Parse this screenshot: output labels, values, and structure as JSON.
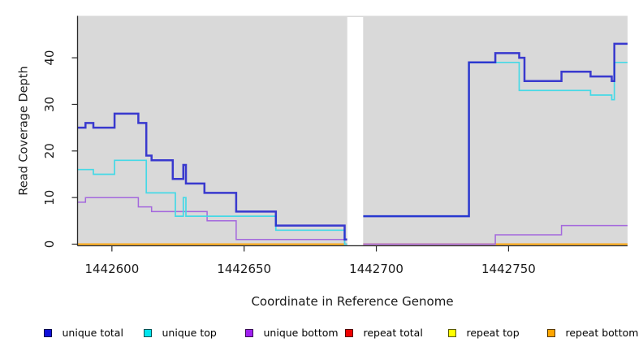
{
  "chart_data": {
    "type": "line",
    "subtype": "step-after",
    "title": "",
    "xlabel": "Coordinate in Reference Genome",
    "ylabel": "Read Coverage Depth",
    "xlim": [
      1442587,
      1442795
    ],
    "ylim": [
      0,
      49
    ],
    "x_ticks": [
      1442600,
      1442650,
      1442700,
      1442750
    ],
    "y_ticks": [
      0,
      10,
      20,
      30,
      40
    ],
    "grid": false,
    "legend_position": "bottom",
    "plot_bg": "#d9d9d9",
    "page_bg": "#ffffff",
    "axis_color": "#2b2b2b",
    "gap_region": {
      "x0": 1442689,
      "x1": 1442695,
      "fill": "#ffffff"
    },
    "zero_overlap_segment": {
      "x0": 1442695,
      "x1": 1442745,
      "value": 0,
      "color": "#d4607a",
      "width": 1.7,
      "z": 3.5
    },
    "series": [
      {
        "name": "unique total",
        "color": "#2121cc",
        "legend_color": "#0f0fd9",
        "width": 2.5,
        "opacity": 0.87,
        "z": 6,
        "segments": [
          [
            [
              1442587,
              25
            ],
            [
              1442590,
              26
            ],
            [
              1442593,
              25
            ],
            [
              1442601,
              28
            ],
            [
              1442610,
              26
            ],
            [
              1442613,
              19
            ],
            [
              1442615,
              18
            ],
            [
              1442623,
              14
            ],
            [
              1442627,
              17
            ],
            [
              1442628,
              13
            ],
            [
              1442635,
              11
            ],
            [
              1442647,
              7
            ],
            [
              1442662,
              4
            ],
            [
              1442688,
              1
            ],
            [
              1442689,
              1
            ]
          ],
          [
            [
              1442695,
              6
            ],
            [
              1442735,
              39
            ],
            [
              1442745,
              41
            ],
            [
              1442754,
              40
            ],
            [
              1442756,
              35
            ],
            [
              1442770,
              37
            ],
            [
              1442781,
              36
            ],
            [
              1442789,
              35
            ],
            [
              1442790,
              43
            ],
            [
              1442795,
              43
            ]
          ]
        ]
      },
      {
        "name": "unique top",
        "color": "#45d9e6",
        "legend_color": "#00e5ee",
        "width": 1.7,
        "opacity": 1,
        "z": 5,
        "segments": [
          [
            [
              1442587,
              16
            ],
            [
              1442593,
              15
            ],
            [
              1442601,
              18
            ],
            [
              1442613,
              11
            ],
            [
              1442624,
              6
            ],
            [
              1442627,
              10
            ],
            [
              1442628,
              6
            ],
            [
              1442662,
              3
            ],
            [
              1442688,
              0
            ],
            [
              1442689,
              0
            ]
          ],
          [
            [
              1442695,
              6
            ],
            [
              1442735,
              39
            ],
            [
              1442754,
              33
            ],
            [
              1442781,
              32
            ],
            [
              1442789,
              31
            ],
            [
              1442790,
              39
            ],
            [
              1442795,
              39
            ]
          ]
        ]
      },
      {
        "name": "unique bottom",
        "color": "#a468dd",
        "legend_color": "#a020f0",
        "width": 1.5,
        "opacity": 1,
        "z": 4,
        "segments": [
          [
            [
              1442587,
              9
            ],
            [
              1442590,
              10
            ],
            [
              1442610,
              8
            ],
            [
              1442615,
              7
            ],
            [
              1442636,
              5
            ],
            [
              1442647,
              1
            ],
            [
              1442688,
              0
            ],
            [
              1442689,
              0
            ]
          ],
          [
            [
              1442695,
              0
            ],
            [
              1442745,
              2
            ],
            [
              1442770,
              4
            ],
            [
              1442795,
              4
            ]
          ]
        ]
      },
      {
        "name": "repeat total",
        "color": "#ee0000",
        "legend_color": "#ee0000",
        "width": 1.2,
        "opacity": 1,
        "z": 1,
        "segments": [
          [
            [
              1442587,
              0
            ],
            [
              1442795,
              0
            ]
          ]
        ]
      },
      {
        "name": "repeat top",
        "color": "#ffff00",
        "legend_color": "#ffff00",
        "width": 1.2,
        "opacity": 1,
        "z": 2,
        "segments": [
          [
            [
              1442587,
              0
            ],
            [
              1442795,
              0
            ]
          ]
        ]
      },
      {
        "name": "repeat bottom",
        "color": "#ffa500",
        "legend_color": "#ffa500",
        "width": 1.7,
        "opacity": 1,
        "z": 3,
        "segments": [
          [
            [
              1442587,
              0
            ],
            [
              1442795,
              0
            ]
          ]
        ]
      }
    ]
  },
  "layout_text": {
    "note": ""
  }
}
